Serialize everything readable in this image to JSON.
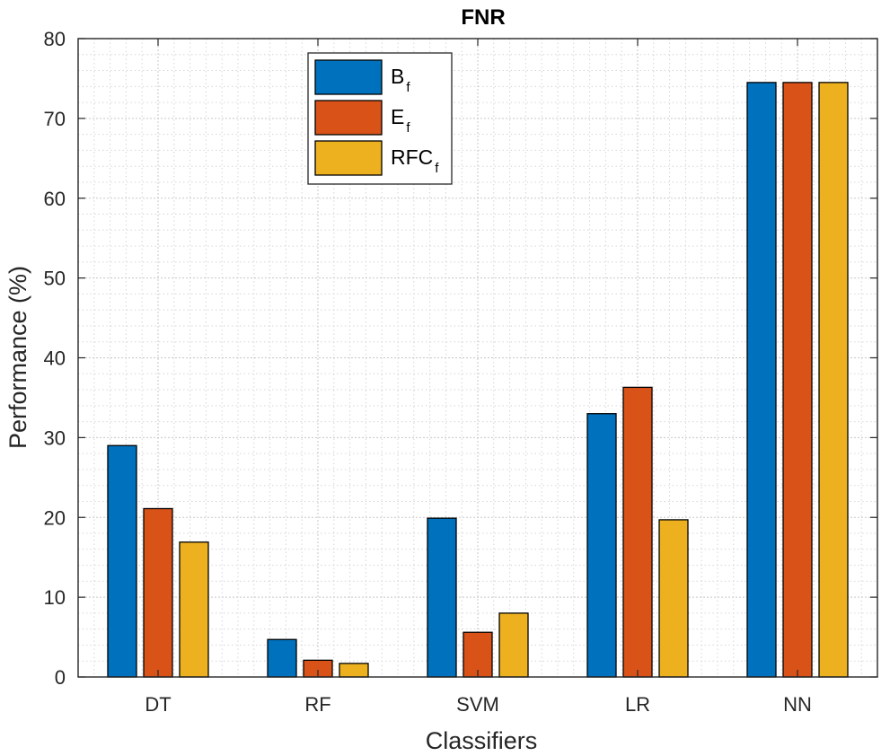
{
  "chart_data": {
    "type": "bar",
    "title": "FNR",
    "xlabel": "Classifiers",
    "ylabel": "Performance (%)",
    "ylim": [
      0,
      80
    ],
    "yticks": [
      0,
      10,
      20,
      30,
      40,
      50,
      60,
      70,
      80
    ],
    "grid": true,
    "minor_grid": true,
    "legend_position": "top-center",
    "categories": [
      "DT",
      "RF",
      "SVM",
      "LR",
      "NN"
    ],
    "series": [
      {
        "name": "B",
        "subscript": "f",
        "color": "#0072BD",
        "values": [
          29.0,
          4.7,
          19.9,
          33.0,
          74.5
        ]
      },
      {
        "name": "E",
        "subscript": "f",
        "color": "#D95319",
        "values": [
          21.1,
          2.1,
          5.6,
          36.3,
          74.5
        ]
      },
      {
        "name": "RFC",
        "subscript": "f",
        "color": "#EDB120",
        "values": [
          16.9,
          1.7,
          8.0,
          19.7,
          74.5
        ]
      }
    ]
  }
}
